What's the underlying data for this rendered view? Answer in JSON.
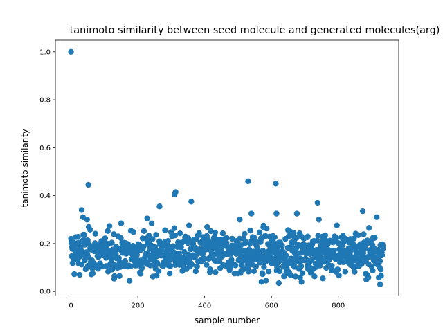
{
  "chart_data": {
    "type": "scatter",
    "title": "tanimoto similarity between seed molecule and generated molecules(arg)",
    "xlabel": "sample number",
    "ylabel": "tanimoto similarity",
    "xlim": [
      -46.7,
      980.7
    ],
    "ylim": [
      -0.0185,
      1.0485
    ],
    "xticks": [
      0,
      200,
      400,
      600,
      800
    ],
    "yticks": [
      0.0,
      0.2,
      0.4,
      0.6,
      0.8,
      1.0
    ],
    "xtick_labels": [
      "0",
      "200",
      "400",
      "600",
      "800"
    ],
    "ytick_labels": [
      "0.0",
      "0.2",
      "0.4",
      "0.6",
      "0.8",
      "1.0"
    ],
    "grid": false,
    "legend": "none",
    "marker_color": "#1f77b4",
    "sample_count": 934,
    "noted_points": [
      {
        "x": 0,
        "y": 1.0
      },
      {
        "x": 52,
        "y": 0.445
      },
      {
        "x": 32,
        "y": 0.34
      },
      {
        "x": 36,
        "y": 0.31
      },
      {
        "x": 48,
        "y": 0.3
      },
      {
        "x": 265,
        "y": 0.355
      },
      {
        "x": 228,
        "y": 0.305
      },
      {
        "x": 310,
        "y": 0.405
      },
      {
        "x": 313,
        "y": 0.415
      },
      {
        "x": 360,
        "y": 0.375
      },
      {
        "x": 505,
        "y": 0.3
      },
      {
        "x": 530,
        "y": 0.46
      },
      {
        "x": 540,
        "y": 0.325
      },
      {
        "x": 613,
        "y": 0.45
      },
      {
        "x": 615,
        "y": 0.325
      },
      {
        "x": 676,
        "y": 0.325
      },
      {
        "x": 738,
        "y": 0.37
      },
      {
        "x": 742,
        "y": 0.3
      },
      {
        "x": 873,
        "y": 0.335
      },
      {
        "x": 915,
        "y": 0.31
      },
      {
        "x": 925,
        "y": 0.03
      },
      {
        "x": 622,
        "y": 0.035
      },
      {
        "x": 690,
        "y": 0.04
      },
      {
        "x": 570,
        "y": 0.04
      }
    ],
    "bulk": {
      "x_range": [
        0,
        934
      ],
      "y_median": 0.16,
      "y_spread": 0.045,
      "y_min": 0.03,
      "y_max": 0.3
    }
  }
}
